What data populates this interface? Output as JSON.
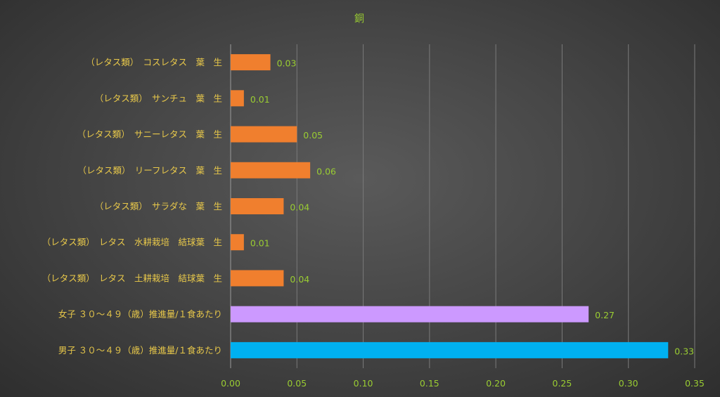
{
  "chart_data": {
    "type": "bar",
    "orientation": "horizontal",
    "title": "銅",
    "xlabel": "",
    "ylabel": "",
    "xlim": [
      0,
      0.35
    ],
    "ticks": [
      "0.00",
      "0.05",
      "0.10",
      "0.15",
      "0.20",
      "0.25",
      "0.30",
      "0.35"
    ],
    "grid": true,
    "legend": "none",
    "categories": [
      "（レタス類）　コスレタス　葉　生",
      "（レタス類）　サンチュ　葉　生",
      "（レタス類）　サニーレタス　葉　生",
      "（レタス類）　リーフレタス　葉　生",
      "（レタス類）　サラダな　葉　生",
      "（レタス類）　レタス　水耕栽培　結球葉　生",
      "（レタス類）　レタス　土耕栽培　結球葉　生",
      "女子 ３０～４９（歳）推進量/１食あたり",
      "男子 ３０～４９（歳）推進量/１食あたり"
    ],
    "values": [
      0.03,
      0.01,
      0.05,
      0.06,
      0.04,
      0.01,
      0.04,
      0.27,
      0.33
    ],
    "value_labels": [
      "0.03",
      "0.01",
      "0.05",
      "0.06",
      "0.04",
      "0.01",
      "0.04",
      "0.27",
      "0.33"
    ],
    "bar_colors": [
      "#f07f2e",
      "#f07f2e",
      "#f07f2e",
      "#f07f2e",
      "#f07f2e",
      "#f07f2e",
      "#f07f2e",
      "#cc99ff",
      "#00b0f0"
    ]
  }
}
